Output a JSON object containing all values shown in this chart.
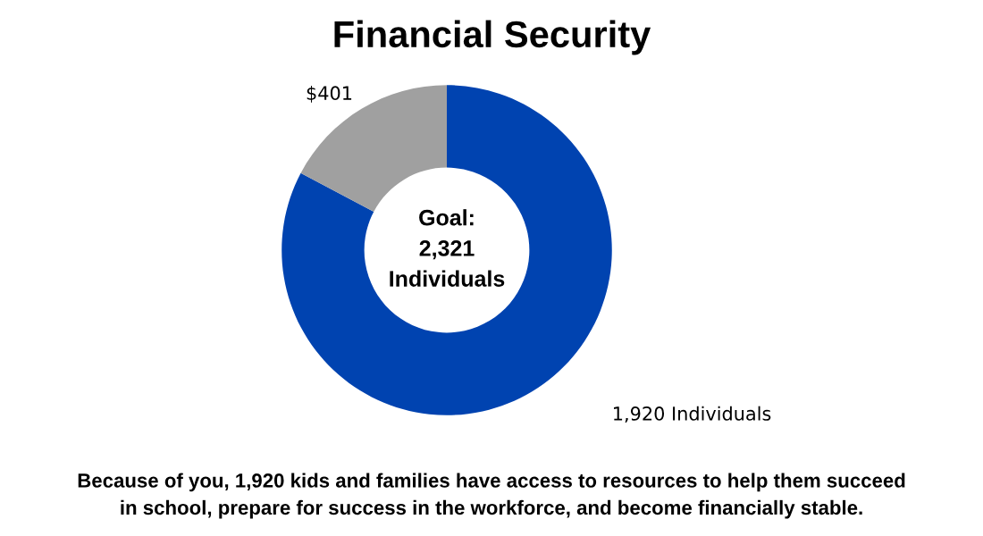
{
  "chart_data": {
    "type": "donut",
    "title": "Financial Security",
    "categories": [
      null,
      null
    ],
    "values": [
      1920,
      401
    ],
    "colors": [
      "#0043b0",
      "#a0a0a0"
    ],
    "value_labels": [
      "1,920 Individuals",
      "$401"
    ],
    "annotations": [
      "Goal:\n2,321\nIndividuals",
      "Because of you, 1,920 kids and families have access to resources to help them succeed\nin school, prepare for success in the workforce, and become financially stable."
    ]
  }
}
